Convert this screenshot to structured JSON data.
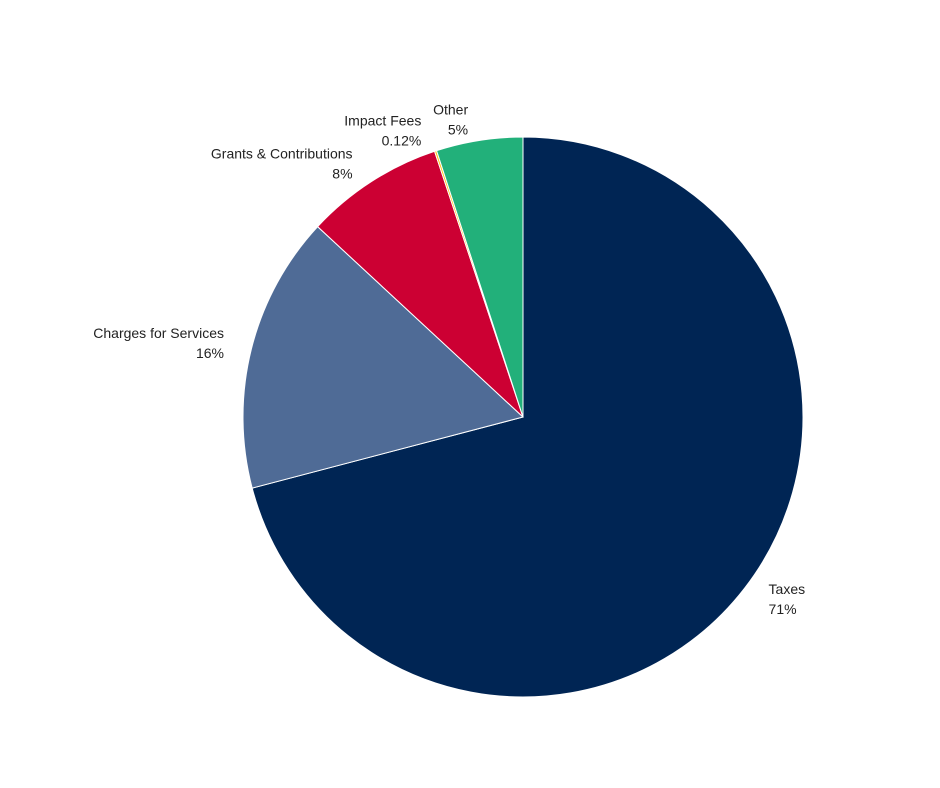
{
  "chart_data": {
    "type": "pie",
    "categories": [
      "Taxes",
      "Charges for Services",
      "Grants & Contributions",
      "Impact Fees",
      "Other"
    ],
    "values": [
      71,
      16,
      8,
      0.12,
      5
    ],
    "value_labels": [
      "71%",
      "16%",
      "8%",
      "0.12%",
      "5%"
    ],
    "colors": [
      "#002554",
      "#4f6b96",
      "#cc0033",
      "#ffc20e",
      "#22b07a"
    ]
  }
}
